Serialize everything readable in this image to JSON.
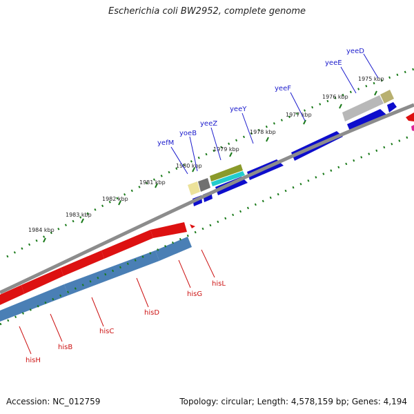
{
  "title": "Escherichia coli BW2952, complete genome",
  "accession": "Accession: NC_012759",
  "topology": "Topology: circular; Length: 4,578,159 bp; Genes: 4,194",
  "colors": {
    "backbone": "#8c8c8c",
    "ticks": "#1a7a1a",
    "plus_strand_gene": "#0d0dcc",
    "minus_strand_gene": "#dd1111",
    "minus_strand_cds": "#4a7fb5",
    "plus_label": "#1a1acc",
    "minus_label": "#cc1111",
    "cds_olive": "#8a9a2a",
    "cds_cyan": "#22cccc",
    "cds_grey": "#808080",
    "cds_pale_yellow": "#ece29a",
    "cds_light_grey": "#b8b8b8",
    "cds_khaki": "#b8b070",
    "accent_magenta": "#dd2299"
  },
  "kbp_labels": [
    "1975 kbp",
    "1976 kbp",
    "1977 kbp",
    "1978 kbp",
    "1979 kbp",
    "1980 kbp",
    "1981 kbp",
    "1982 kbp",
    "1983 kbp",
    "1984 kbp"
  ],
  "genes_plus": [
    "yeeD",
    "yeeE",
    "yeeF",
    "yeeY",
    "yeeZ",
    "yoeB",
    "yefM"
  ],
  "genes_minus": [
    "hisL",
    "hisG",
    "hisD",
    "hisC",
    "hisB",
    "hisH"
  ]
}
